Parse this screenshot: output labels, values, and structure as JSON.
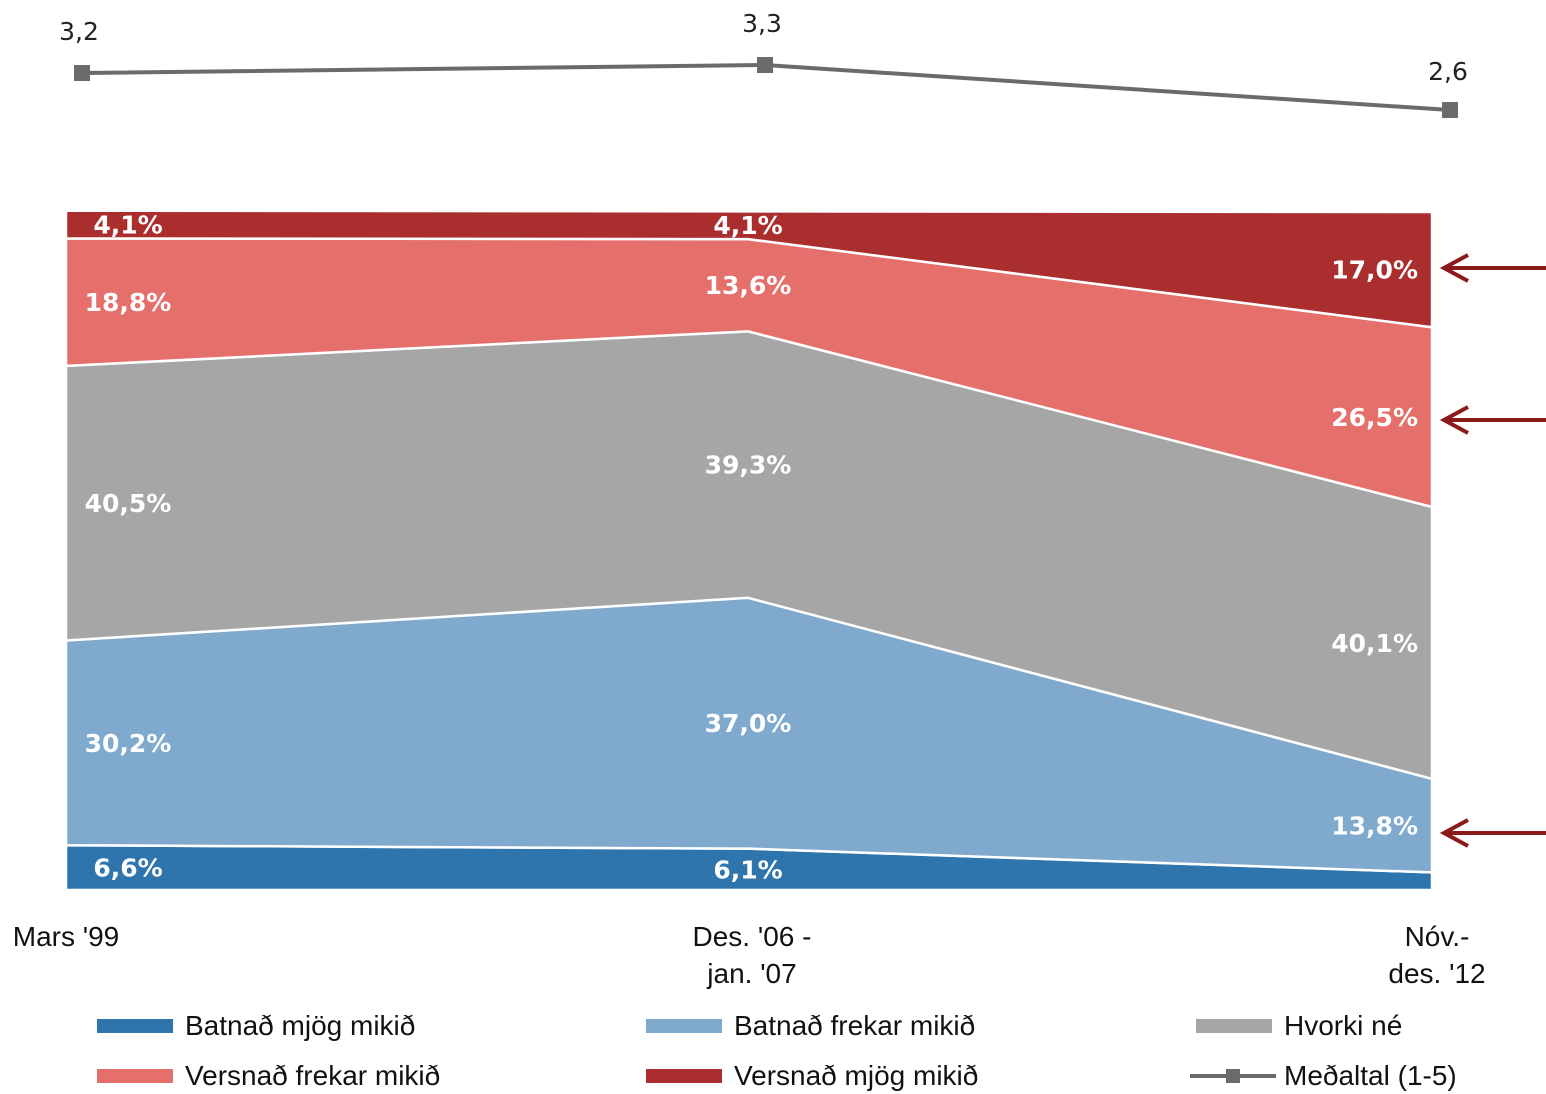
{
  "chart_data": {
    "type": "area",
    "stacked": true,
    "categories": [
      "Mars '99",
      "Des. '06 -\njan. '07",
      "Nóv.-\ndes. '12"
    ],
    "series": [
      {
        "name": "Batnað mjög mikið",
        "color": "#2e75ad",
        "values": [
          6.6,
          6.1,
          2.6
        ],
        "labels": [
          "6,6%",
          "6,1%",
          ""
        ]
      },
      {
        "name": "Batnað frekar mikið",
        "color": "#7faace",
        "values": [
          30.2,
          37.0,
          13.8
        ],
        "labels": [
          "30,2%",
          "37,0%",
          "13,8%"
        ]
      },
      {
        "name": "Hvorki né",
        "color": "#a6a6a6",
        "values": [
          40.5,
          39.3,
          40.1
        ],
        "labels": [
          "40,5%",
          "39,3%",
          "40,1%"
        ]
      },
      {
        "name": "Versnað frekar mikið",
        "color": "#e5706b",
        "values": [
          18.8,
          13.6,
          26.5
        ],
        "labels": [
          "18,8%",
          "13,6%",
          "26,5%"
        ]
      },
      {
        "name": "Versnað mjög mikið",
        "color": "#aa2e2e",
        "values": [
          4.1,
          4.1,
          17.0
        ],
        "labels": [
          "4,1%",
          "4,1%",
          "17,0%"
        ]
      }
    ],
    "mean_series": {
      "name": "Meðaltal (1-5)",
      "color": "#6b6b6b",
      "values": [
        3.2,
        3.3,
        2.6
      ],
      "labels": [
        "3,2",
        "3,3",
        "2,6"
      ]
    },
    "ylim": [
      0,
      100
    ],
    "legend_position": "bottom",
    "annotations": {
      "arrows_color": "#8b1a1a",
      "arrow_targets": [
        "17,0%",
        "26,5%",
        "13,8%"
      ]
    }
  },
  "legend": {
    "items": [
      {
        "label": "Batnað mjög mikið",
        "color": "#2e75ad",
        "kind": "area"
      },
      {
        "label": "Batnað frekar mikið",
        "color": "#7faace",
        "kind": "area"
      },
      {
        "label": "Hvorki né",
        "color": "#a6a6a6",
        "kind": "area"
      },
      {
        "label": "Versnað frekar mikið",
        "color": "#e5706b",
        "kind": "area"
      },
      {
        "label": "Versnað mjög mikið",
        "color": "#aa2e2e",
        "kind": "area"
      },
      {
        "label": "Meðaltal (1-5)",
        "color": "#6b6b6b",
        "kind": "line"
      }
    ]
  }
}
